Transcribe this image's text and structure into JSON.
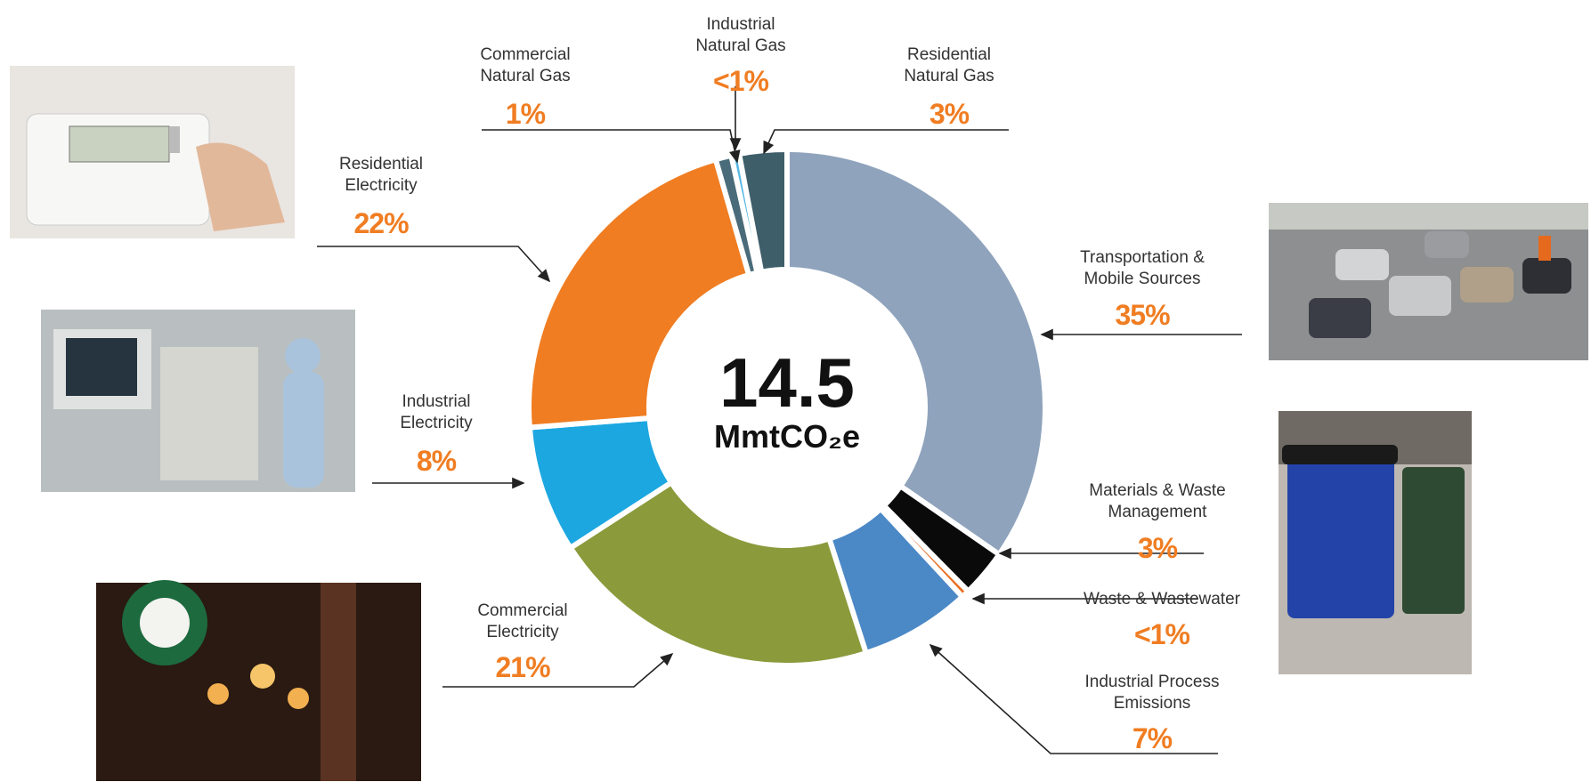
{
  "chart_data": {
    "type": "donut",
    "center_total": 14.5,
    "center_unit": "MmtCO₂e",
    "categories": [
      "Transportation & Mobile Sources",
      "Materials & Waste Management",
      "Waste & Wastewater",
      "Industrial Process Emissions",
      "Commercial Electricity",
      "Industrial Electricity",
      "Residential Electricity",
      "Commercial Natural Gas",
      "Industrial Natural Gas",
      "Residential Natural Gas"
    ],
    "values": [
      35,
      3,
      0.5,
      7,
      21,
      8,
      22,
      1,
      0.5,
      3
    ],
    "value_labels": [
      "35%",
      "3%",
      "<1%",
      "7%",
      "21%",
      "8%",
      "22%",
      "1%",
      "<1%",
      "3%"
    ],
    "colors": [
      "#8fa3bc",
      "#0a0a0a",
      "#ea6f25",
      "#4b88c6",
      "#8b9a3b",
      "#1ca7e1",
      "#f07d22",
      "#4a6b79",
      "#55b6e2",
      "#3e5e6a"
    ]
  }
}
